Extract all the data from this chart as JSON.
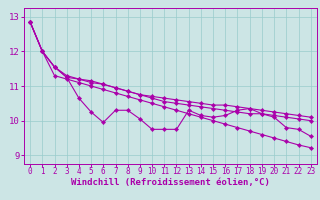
{
  "bg_color": "#cce5e5",
  "line_color": "#aa00aa",
  "grid_color": "#99cccc",
  "xlabel": "Windchill (Refroidissement éolien,°C)",
  "xlim": [
    -0.5,
    23.5
  ],
  "ylim": [
    8.75,
    13.25
  ],
  "xticks": [
    0,
    1,
    2,
    3,
    4,
    5,
    6,
    7,
    8,
    9,
    10,
    11,
    12,
    13,
    14,
    15,
    16,
    17,
    18,
    19,
    20,
    21,
    22,
    23
  ],
  "yticks": [
    9,
    10,
    11,
    12,
    13
  ],
  "lines": [
    [
      12.85,
      12.0,
      11.55,
      11.25,
      10.65,
      10.25,
      9.95,
      10.3,
      10.3,
      10.05,
      9.75,
      9.75,
      9.75,
      10.3,
      10.15,
      10.1,
      10.15,
      10.3,
      10.35,
      10.2,
      10.1,
      9.8,
      9.75,
      9.55
    ],
    [
      12.85,
      12.0,
      11.55,
      11.3,
      11.2,
      11.1,
      11.05,
      10.95,
      10.85,
      10.75,
      10.65,
      10.55,
      10.5,
      10.45,
      10.4,
      10.35,
      10.3,
      10.25,
      10.2,
      10.2,
      10.15,
      10.1,
      10.05,
      10.0
    ],
    [
      12.85,
      12.0,
      11.55,
      11.25,
      11.2,
      11.15,
      11.05,
      10.95,
      10.85,
      10.75,
      10.7,
      10.65,
      10.6,
      10.55,
      10.5,
      10.45,
      10.45,
      10.4,
      10.35,
      10.3,
      10.25,
      10.2,
      10.15,
      10.1
    ],
    [
      12.85,
      12.0,
      11.3,
      11.2,
      11.1,
      11.0,
      10.9,
      10.8,
      10.7,
      10.6,
      10.5,
      10.4,
      10.3,
      10.2,
      10.1,
      10.0,
      9.9,
      9.8,
      9.7,
      9.6,
      9.5,
      9.4,
      9.3,
      9.22
    ]
  ],
  "xlabel_fontsize": 6.5,
  "xtick_fontsize": 5.5,
  "ytick_fontsize": 6.5
}
